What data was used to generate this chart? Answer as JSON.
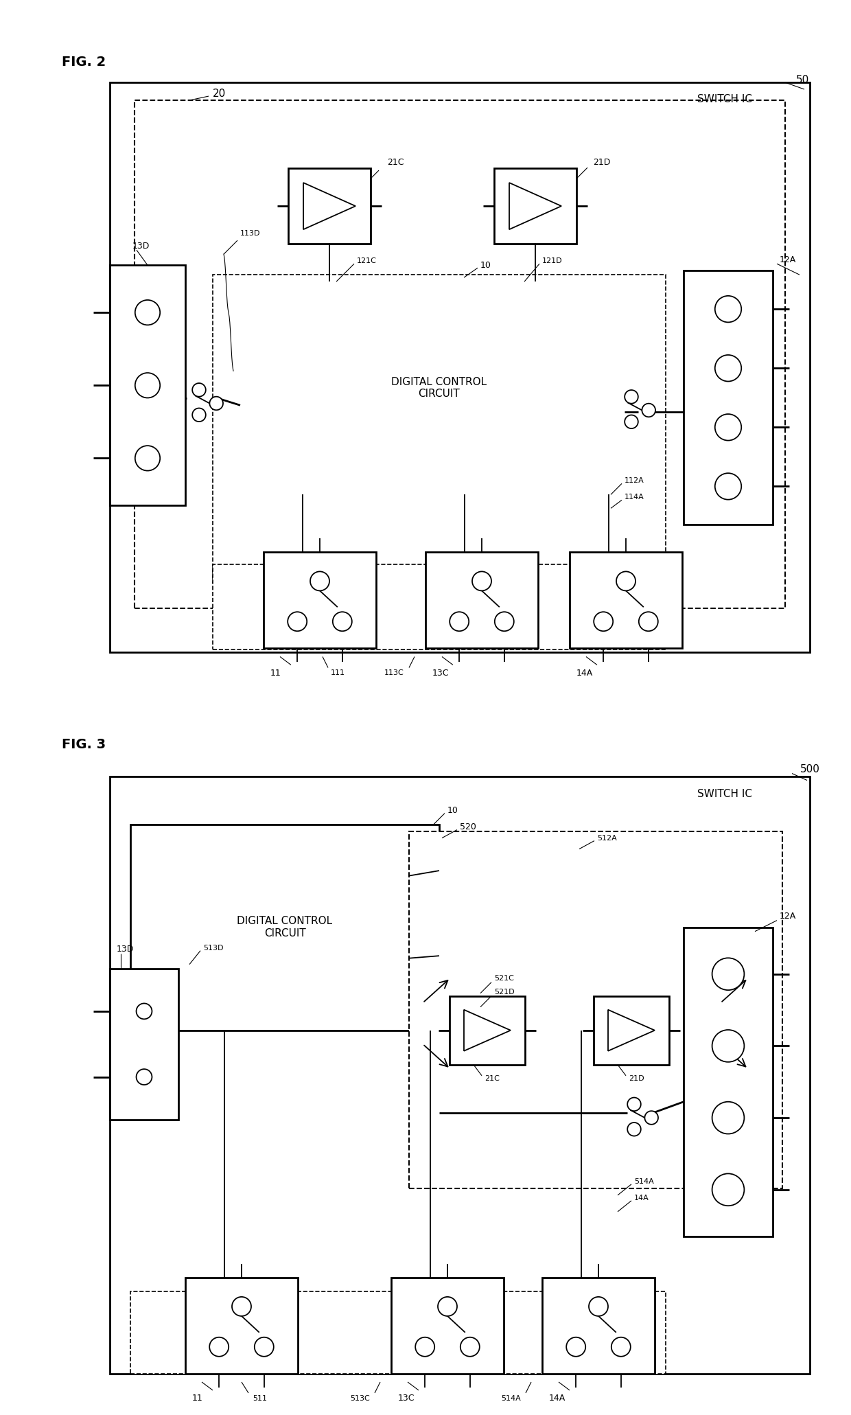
{
  "fig_width": 12.4,
  "fig_height": 20.61,
  "bg_color": "#ffffff",
  "lc": "#000000",
  "fig2_label": "FIG. 2",
  "fig3_label": "FIG. 3",
  "label_50": "50",
  "label_500": "500",
  "switch_ic": "SWITCH IC",
  "label_20": "20",
  "label_520": "520",
  "dcc_text": "DIGITAL CONTROL\nCIRCUIT",
  "label_10": "10",
  "label_12A": "12A",
  "label_13D": "13D",
  "label_21C": "21C",
  "label_21D": "21D",
  "label_121C": "121C",
  "label_121D": "121D",
  "label_113D": "113D",
  "label_111": "111",
  "label_113C": "113C",
  "label_112A": "112A",
  "label_114A": "114A",
  "label_11": "11",
  "label_13C": "13C",
  "label_14A": "14A",
  "label_513D": "513D",
  "label_521C": "521C",
  "label_521D": "521D",
  "label_511": "511",
  "label_513C": "513C",
  "label_512A": "512A",
  "label_514A": "514A"
}
